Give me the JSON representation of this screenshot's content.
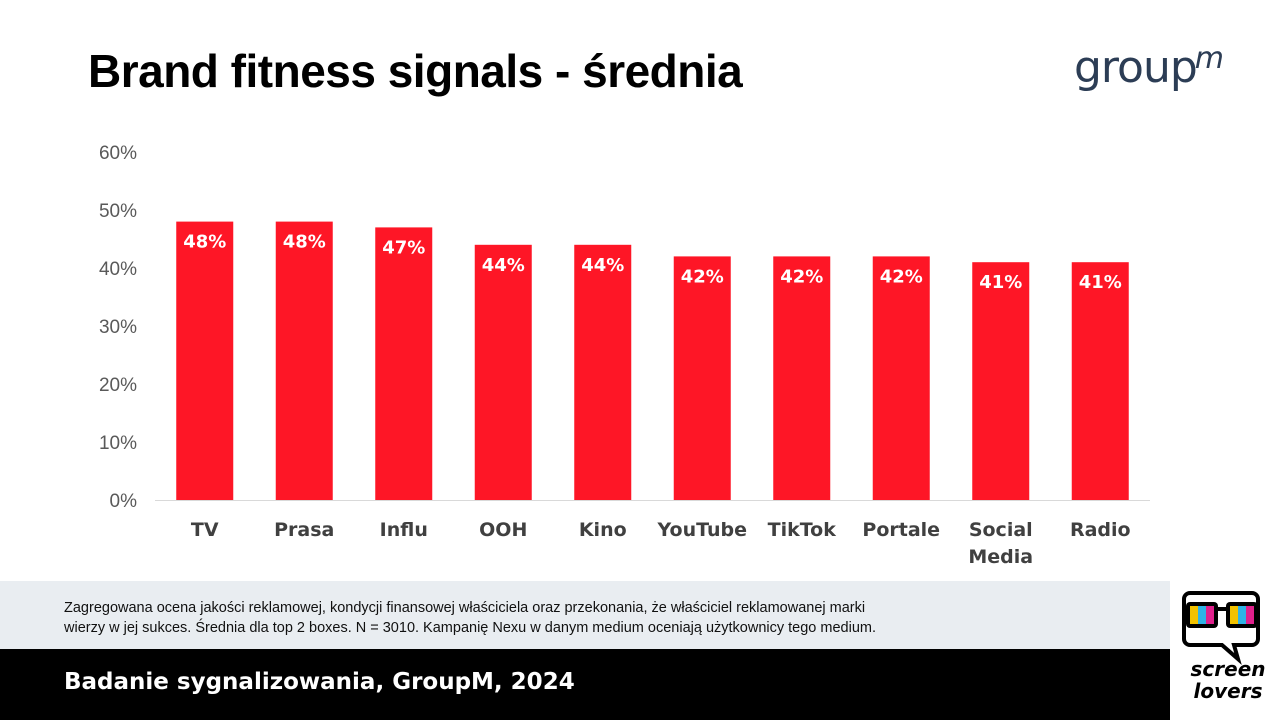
{
  "page": {
    "title": "Brand fitness signals - średnia",
    "logo": {
      "text": "group",
      "superscript": "m"
    },
    "caption_line1": "Zagregowana ocena jakości reklamowej, kondycji finansowej właściciela oraz przekonania, że właściciel reklamowanej marki",
    "caption_line2": "wierzy w jej sukces. Średnia dla top 2 boxes. N = 3010. Kampanię Nexu w danym medium oceniają użytkownicy tego medium.",
    "footer": "Badanie sygnalizowania, GroupM, 2024",
    "badge": {
      "line1": "screen",
      "line2": "lovers"
    }
  },
  "colors": {
    "bar": "#fe1626",
    "logo": "#2c3d55",
    "axis_text": "#595959",
    "category_text": "#404040"
  },
  "chart_data": {
    "type": "bar",
    "title": "Brand fitness signals - średnia",
    "categories": [
      "TV",
      "Prasa",
      "Influ",
      "OOH",
      "Kino",
      "YouTube",
      "TikTok",
      "Portale",
      "Social Media",
      "Radio"
    ],
    "values": [
      48,
      48,
      47,
      44,
      44,
      42,
      42,
      42,
      41,
      41
    ],
    "data_labels": [
      "48%",
      "48%",
      "47%",
      "44%",
      "44%",
      "42%",
      "42%",
      "42%",
      "41%",
      "41%"
    ],
    "ylim": [
      0,
      60
    ],
    "y_ticks": [
      0,
      10,
      20,
      30,
      40,
      50,
      60
    ],
    "y_tick_labels": [
      "0%",
      "10%",
      "20%",
      "30%",
      "40%",
      "50%",
      "60%"
    ],
    "grid": false,
    "legend": "none",
    "xlabel": "",
    "ylabel": ""
  }
}
